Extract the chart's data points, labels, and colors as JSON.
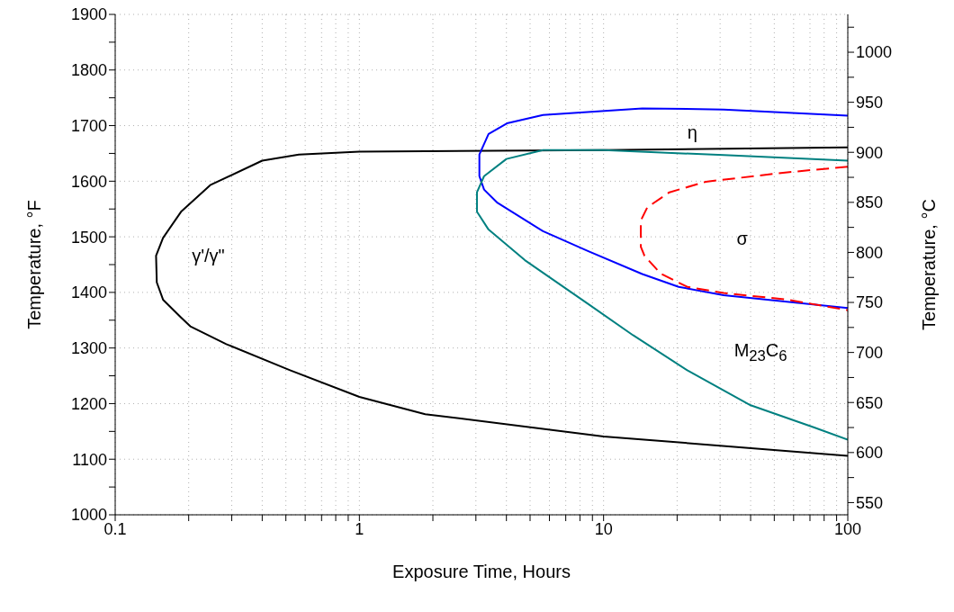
{
  "chart_data": {
    "type": "line",
    "xlabel": "Exposure Time, Hours",
    "ylabel": "Temperature, °F",
    "y2label": "Temperature, °C",
    "log": "x",
    "grid": true,
    "marker": "none",
    "xlim": [
      0.1,
      100
    ],
    "xticks": [
      0.1,
      {
        "value": 0.2,
        "label": null
      },
      {
        "value": 0.3,
        "label": null
      },
      {
        "value": 0.4,
        "label": null
      },
      {
        "value": 0.5,
        "label": null
      },
      {
        "value": 0.6,
        "label": null
      },
      {
        "value": 0.7,
        "label": null
      },
      {
        "value": 0.8,
        "label": null
      },
      {
        "value": 0.9,
        "label": null
      },
      1,
      {
        "value": 2,
        "label": null
      },
      {
        "value": 3,
        "label": null
      },
      {
        "value": 4,
        "label": null
      },
      {
        "value": 5,
        "label": null
      },
      {
        "value": 6,
        "label": null
      },
      {
        "value": 7,
        "label": null
      },
      {
        "value": 8,
        "label": null
      },
      {
        "value": 9,
        "label": null
      },
      10,
      {
        "value": 20,
        "label": null
      },
      {
        "value": 30,
        "label": null
      },
      {
        "value": 40,
        "label": null
      },
      {
        "value": 50,
        "label": null
      },
      {
        "value": 60,
        "label": null
      },
      {
        "value": 70,
        "label": null
      },
      {
        "value": 80,
        "label": null
      },
      {
        "value": 90,
        "label": null
      },
      100
    ],
    "ylim": [
      1000,
      1900
    ],
    "yticks": [
      1000,
      {
        "value": 1050,
        "label": null
      },
      1100,
      {
        "value": 1150,
        "label": null
      },
      1200,
      {
        "value": 1250,
        "label": null
      },
      1300,
      {
        "value": 1350,
        "label": null
      },
      1400,
      {
        "value": 1450,
        "label": null
      },
      1500,
      {
        "value": 1550,
        "label": null
      },
      1600,
      {
        "value": 1650,
        "label": null
      },
      1700,
      {
        "value": 1750,
        "label": null
      },
      1800,
      {
        "value": 1850,
        "label": null
      },
      1900
    ],
    "y2lim": [
      537.8,
      1037.8
    ],
    "y2ticks": [
      550,
      {
        "value": 575,
        "label": null
      },
      600,
      {
        "value": 625,
        "label": null
      },
      650,
      {
        "value": 675,
        "label": null
      },
      700,
      {
        "value": 725,
        "label": null
      },
      750,
      {
        "value": 775,
        "label": null
      },
      800,
      {
        "value": 825,
        "label": null
      },
      850,
      {
        "value": 875,
        "label": null
      },
      900,
      {
        "value": 925,
        "label": null
      },
      950,
      {
        "value": 975,
        "label": null
      },
      1000,
      {
        "value": 1025,
        "label": null
      }
    ],
    "series": [
      {
        "color": "#000000",
        "line_style": "solid",
        "x": [
          100,
          10,
          1,
          0.565,
          0.4,
          0.245,
          0.186,
          0.157,
          0.147,
          0.148,
          0.157,
          0.186,
          0.203,
          0.285,
          0.52,
          1,
          1.86,
          10,
          100
        ],
        "values": [
          1661,
          1656,
          1653,
          1648,
          1637,
          1593,
          1545,
          1498,
          1466,
          1418,
          1387,
          1355,
          1339,
          1307,
          1260,
          1212,
          1181,
          1141,
          1106
        ]
      },
      {
        "color": "#0000ff",
        "line_style": "solid",
        "x": [
          100,
          31,
          14.4,
          5.65,
          4.02,
          3.38,
          3.1,
          3.1,
          3.24,
          3.68,
          5.65,
          8.66,
          14.4,
          20.3,
          31,
          100
        ],
        "values": [
          1718,
          1729,
          1731,
          1719,
          1704,
          1685,
          1648,
          1609,
          1585,
          1561,
          1510,
          1474,
          1433,
          1410,
          1395,
          1372
        ]
      },
      {
        "color": "#008080",
        "line_style": "solid",
        "x": [
          100,
          31,
          10,
          5.65,
          4.0,
          3.24,
          3.03,
          3.03,
          3.38,
          4.76,
          8.66,
          13.2,
          22,
          40,
          72.9,
          100
        ],
        "values": [
          1637,
          1647,
          1656,
          1656,
          1640,
          1609,
          1580,
          1545,
          1513,
          1458,
          1379,
          1323,
          1260,
          1197,
          1157,
          1135
        ]
      },
      {
        "color": "#ff0000",
        "line_style": "dashed",
        "x": [
          100,
          56.5,
          26.2,
          18.6,
          15.1,
          14.2,
          14.2,
          14.7,
          17.1,
          22,
          31,
          56.5,
          100
        ],
        "values": [
          1626,
          1616,
          1599,
          1580,
          1553,
          1529,
          1482,
          1466,
          1434,
          1410,
          1399,
          1387,
          1368
        ]
      }
    ],
    "annotations": [
      "γ'/γ\"",
      "η",
      "σ",
      "M$_{23}$C$_{6}$"
    ]
  }
}
